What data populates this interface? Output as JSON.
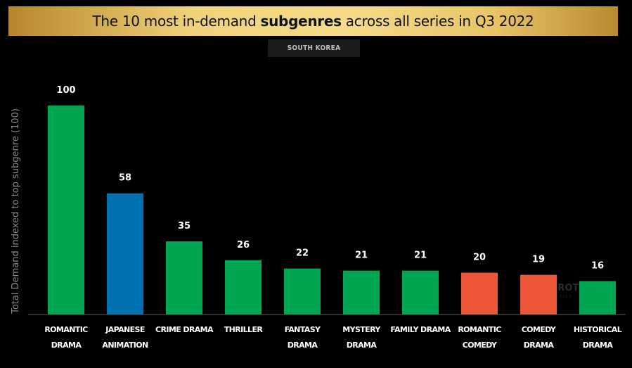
{
  "header": {
    "title_before": "The 10 most in-demand ",
    "title_bold": "subgenres",
    "title_after": " across all series in Q3 2022",
    "region": "SOUTH KOREA"
  },
  "watermark": {
    "brand": "PARROT",
    "sub": "ANALYTICS"
  },
  "chart_data": {
    "type": "bar",
    "title": "The 10 most in-demand subgenres across all series in Q3 2022",
    "subtitle": "SOUTH KOREA",
    "ylabel": "Total Demand indexed to top subgenre (100)",
    "xlabel": "",
    "ylim": [
      0,
      100
    ],
    "grid": false,
    "legend": "none",
    "categories": [
      [
        "ROMANTIC",
        "DRAMA"
      ],
      [
        "JAPANESE",
        "ANIMATION"
      ],
      [
        "CRIME DRAMA"
      ],
      [
        "THRILLER"
      ],
      [
        "FANTASY",
        "DRAMA"
      ],
      [
        "MYSTERY",
        "DRAMA"
      ],
      [
        "FAMILY DRAMA"
      ],
      [
        "ROMANTIC",
        "COMEDY"
      ],
      [
        "COMEDY",
        "DRAMA"
      ],
      [
        "HISTORICAL",
        "DRAMA"
      ]
    ],
    "values": [
      100,
      58,
      35,
      26,
      22,
      21,
      21,
      20,
      19,
      16
    ],
    "colors": [
      "#00a651",
      "#0070b0",
      "#00a651",
      "#00a651",
      "#00a651",
      "#00a651",
      "#00a651",
      "#ee5638",
      "#ee5638",
      "#00a651"
    ]
  }
}
